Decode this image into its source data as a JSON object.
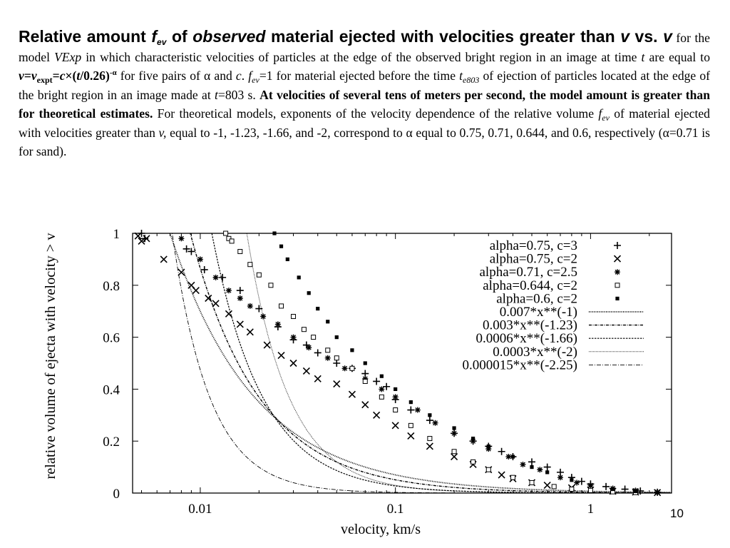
{
  "slide": {
    "heading": {
      "t1": "Relative amount ",
      "f": "f",
      "f_sub": "ev",
      "t2": " of ",
      "t3": "observed",
      "t4": " material ejected with velocities greater than ",
      "v1": "v",
      "t5": " vs. ",
      "v2": "v"
    },
    "body": {
      "p1": " for the model ",
      "vexp": "VExp",
      "p2": " in which characteristic velocities of particles at the edge of the observed bright region in an image at time ",
      "t_var": "t",
      "p3": " are equal to ",
      "eq_v": "v",
      "eq_eq1": "=",
      "eq_v2": "v",
      "eq_sub": "expt",
      "eq_eq2": "=",
      "eq_c": "c",
      "eq_times": "×(",
      "eq_t": "t",
      "eq_rest": "/0.26)",
      "eq_sup": "-α",
      "p4": " for five pairs of α and ",
      "c_var": "c",
      "p5": ". ",
      "f2": "f",
      "f2_sub": "ev",
      "p6": "=1 for material ejected before the time ",
      "te": "t",
      "te_sub": "e803",
      "p7": " of ejection of particles located at the edge of the bright region in an image made at ",
      "t2_var": "t",
      "p8": "=803 s. ",
      "bold": "At velocities of several tens of meters per second, the model amount is greater than for theoretical estimates.",
      "p9": " For theoretical models, exponents of the velocity dependence of the relative volume ",
      "f3": "f",
      "f3_sub": "ev",
      "p10": " of material ejected with velocities greater than ",
      "v3": "v,",
      "p11": " equal to -1, -1.23, -1.66, and -2, correspond to α  equal to 0.75, 0.71, 0.644, and 0.6, respectively (α=0.71 is for sand)."
    },
    "page_number": "10"
  },
  "chart_data": {
    "type": "scatter",
    "x_scale": "log",
    "xlim": [
      0.0045,
      2.6
    ],
    "ylim": [
      0,
      1
    ],
    "xlabel": "velocity, km/s",
    "ylabel": "relative volume of ejecta with velocity > v",
    "x_ticks": [
      {
        "value": 0.01,
        "label": "0.01"
      },
      {
        "value": 0.1,
        "label": "0.1"
      },
      {
        "value": 1,
        "label": "1"
      }
    ],
    "y_ticks": [
      {
        "value": 0,
        "label": "0"
      },
      {
        "value": 0.2,
        "label": "0.2"
      },
      {
        "value": 0.4,
        "label": "0.4"
      },
      {
        "value": 0.6,
        "label": "0.6"
      },
      {
        "value": 0.8,
        "label": "0.8"
      },
      {
        "value": 1,
        "label": "1"
      }
    ],
    "legend_position": "top-right",
    "series": [
      {
        "name": "alpha=0.75, c=3",
        "marker": "plus",
        "points": [
          [
            0.005,
            1
          ],
          [
            0.0052,
            0.98
          ],
          [
            0.0085,
            0.94
          ],
          [
            0.009,
            0.93
          ],
          [
            0.0105,
            0.86
          ],
          [
            0.013,
            0.83
          ],
          [
            0.016,
            0.78
          ],
          [
            0.02,
            0.71
          ],
          [
            0.025,
            0.64
          ],
          [
            0.03,
            0.59
          ],
          [
            0.035,
            0.57
          ],
          [
            0.04,
            0.54
          ],
          [
            0.05,
            0.5
          ],
          [
            0.06,
            0.48
          ],
          [
            0.07,
            0.46
          ],
          [
            0.08,
            0.43
          ],
          [
            0.09,
            0.41
          ],
          [
            0.1,
            0.36
          ],
          [
            0.12,
            0.32
          ],
          [
            0.15,
            0.28
          ],
          [
            0.2,
            0.23
          ],
          [
            0.25,
            0.2
          ],
          [
            0.3,
            0.18
          ],
          [
            0.35,
            0.16
          ],
          [
            0.4,
            0.14
          ],
          [
            0.5,
            0.12
          ],
          [
            0.6,
            0.1
          ],
          [
            0.7,
            0.08
          ],
          [
            0.8,
            0.06
          ],
          [
            0.9,
            0.045
          ],
          [
            1,
            0.035
          ],
          [
            1.2,
            0.025
          ],
          [
            1.5,
            0.015
          ],
          [
            1.8,
            0.008
          ],
          [
            2.2,
            0.003
          ]
        ]
      },
      {
        "name": "alpha=0.75, c=2",
        "marker": "cross",
        "points": [
          [
            0.0048,
            0.99
          ],
          [
            0.005,
            0.97
          ],
          [
            0.0053,
            0.98
          ],
          [
            0.0065,
            0.9
          ],
          [
            0.008,
            0.85
          ],
          [
            0.009,
            0.8
          ],
          [
            0.0095,
            0.78
          ],
          [
            0.011,
            0.75
          ],
          [
            0.012,
            0.73
          ],
          [
            0.014,
            0.69
          ],
          [
            0.016,
            0.65
          ],
          [
            0.018,
            0.62
          ],
          [
            0.022,
            0.57
          ],
          [
            0.026,
            0.53
          ],
          [
            0.03,
            0.5
          ],
          [
            0.035,
            0.47
          ],
          [
            0.04,
            0.44
          ],
          [
            0.05,
            0.42
          ],
          [
            0.06,
            0.38
          ],
          [
            0.07,
            0.34
          ],
          [
            0.08,
            0.3
          ],
          [
            0.1,
            0.26
          ],
          [
            0.12,
            0.22
          ],
          [
            0.15,
            0.18
          ],
          [
            0.2,
            0.14
          ],
          [
            0.25,
            0.11
          ],
          [
            0.3,
            0.09
          ],
          [
            0.35,
            0.07
          ],
          [
            0.4,
            0.055
          ],
          [
            0.5,
            0.04
          ],
          [
            0.6,
            0.03
          ],
          [
            0.8,
            0.02
          ],
          [
            1,
            0.012
          ],
          [
            1.3,
            0.007
          ],
          [
            1.7,
            0.004
          ],
          [
            2.2,
            0.002
          ]
        ]
      },
      {
        "name": "alpha=0.71, c=2.5",
        "marker": "asterisk",
        "points": [
          [
            0.008,
            0.98
          ],
          [
            0.01,
            0.9
          ],
          [
            0.012,
            0.83
          ],
          [
            0.014,
            0.78
          ],
          [
            0.016,
            0.75
          ],
          [
            0.018,
            0.72
          ],
          [
            0.021,
            0.68
          ],
          [
            0.025,
            0.65
          ],
          [
            0.03,
            0.6
          ],
          [
            0.036,
            0.56
          ],
          [
            0.045,
            0.52
          ],
          [
            0.055,
            0.48
          ],
          [
            0.07,
            0.44
          ],
          [
            0.085,
            0.4
          ],
          [
            0.1,
            0.37
          ],
          [
            0.13,
            0.32
          ],
          [
            0.16,
            0.27
          ],
          [
            0.2,
            0.23
          ],
          [
            0.25,
            0.2
          ],
          [
            0.3,
            0.17
          ],
          [
            0.38,
            0.14
          ],
          [
            0.45,
            0.11
          ],
          [
            0.55,
            0.09
          ],
          [
            0.7,
            0.06
          ],
          [
            0.85,
            0.04
          ],
          [
            1,
            0.03
          ],
          [
            1.3,
            0.018
          ],
          [
            1.7,
            0.01
          ],
          [
            2.2,
            0.004
          ]
        ]
      },
      {
        "name": "alpha=0.644, c=2",
        "marker": "box",
        "points": [
          [
            0.0135,
            1
          ],
          [
            0.014,
            0.98
          ],
          [
            0.0145,
            0.97
          ],
          [
            0.016,
            0.93
          ],
          [
            0.018,
            0.88
          ],
          [
            0.02,
            0.84
          ],
          [
            0.023,
            0.8
          ],
          [
            0.026,
            0.72
          ],
          [
            0.03,
            0.68
          ],
          [
            0.034,
            0.63
          ],
          [
            0.038,
            0.6
          ],
          [
            0.045,
            0.55
          ],
          [
            0.05,
            0.52
          ],
          [
            0.06,
            0.48
          ],
          [
            0.07,
            0.43
          ],
          [
            0.085,
            0.37
          ],
          [
            0.1,
            0.32
          ],
          [
            0.12,
            0.26
          ],
          [
            0.15,
            0.21
          ],
          [
            0.2,
            0.16
          ],
          [
            0.25,
            0.12
          ],
          [
            0.3,
            0.09
          ],
          [
            0.4,
            0.06
          ],
          [
            0.5,
            0.04
          ],
          [
            0.65,
            0.025
          ],
          [
            0.8,
            0.015
          ],
          [
            1,
            0.01
          ],
          [
            1.3,
            0.005
          ],
          [
            1.7,
            0.002
          ]
        ]
      },
      {
        "name": "alpha=0.6, c=2",
        "marker": "filled-square",
        "points": [
          [
            0.024,
            1
          ],
          [
            0.026,
            0.95
          ],
          [
            0.028,
            0.9
          ],
          [
            0.032,
            0.83
          ],
          [
            0.036,
            0.77
          ],
          [
            0.04,
            0.71
          ],
          [
            0.045,
            0.66
          ],
          [
            0.05,
            0.6
          ],
          [
            0.06,
            0.55
          ],
          [
            0.07,
            0.5
          ],
          [
            0.085,
            0.45
          ],
          [
            0.1,
            0.4
          ],
          [
            0.12,
            0.35
          ],
          [
            0.15,
            0.3
          ],
          [
            0.2,
            0.25
          ],
          [
            0.25,
            0.21
          ],
          [
            0.3,
            0.18
          ],
          [
            0.4,
            0.14
          ],
          [
            0.5,
            0.1
          ],
          [
            0.6,
            0.08
          ],
          [
            0.8,
            0.05
          ],
          [
            1,
            0.03
          ],
          [
            1.3,
            0.015
          ],
          [
            1.7,
            0.007
          ],
          [
            2.2,
            0.002
          ]
        ]
      },
      {
        "name": "0.007*x**(-1)",
        "kind": "curve",
        "coef": 0.007,
        "exp": -1,
        "dash": "1,1.4",
        "width": 1.7
      },
      {
        "name": "0.003*x**(-1.23)",
        "kind": "curve",
        "coef": 0.003,
        "exp": -1.23,
        "dash": "4,1.5,1,1.5",
        "width": 1.4
      },
      {
        "name": "0.0006*x**(-1.66)",
        "kind": "curve",
        "coef": 0.0006,
        "exp": -1.66,
        "dash": "2.5,1.5",
        "width": 1.2
      },
      {
        "name": "0.0003*x**(-2)",
        "kind": "curve",
        "coef": 0.0003,
        "exp": -2,
        "dash": "0.8,1.2",
        "width": 1.0
      },
      {
        "name": "0.000015*x**(-2.25)",
        "kind": "curve",
        "coef": 1.5e-05,
        "exp": -2.25,
        "dash": "6,2,1,2",
        "width": 0.9
      }
    ]
  }
}
